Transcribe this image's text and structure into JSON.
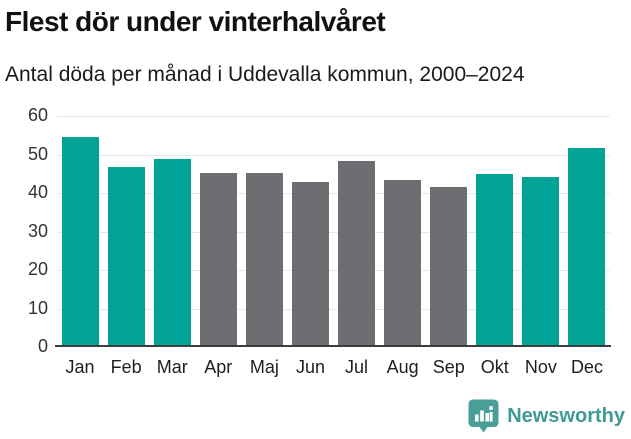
{
  "header": {
    "title": "Flest dör under vinterhalvåret",
    "subtitle": "Antal döda per månad i Uddevalla kommun, 2000–2024"
  },
  "chart_data": {
    "type": "bar",
    "title": "Flest dör under vinterhalvåret",
    "subtitle": "Antal döda per månad i Uddevalla kommun, 2000–2024",
    "categories": [
      "Jan",
      "Feb",
      "Mar",
      "Apr",
      "Maj",
      "Jun",
      "Jul",
      "Aug",
      "Sep",
      "Okt",
      "Nov",
      "Dec"
    ],
    "values": [
      54.5,
      46.7,
      48.8,
      45.2,
      45.2,
      42.9,
      48.3,
      43.4,
      41.6,
      45.0,
      44.2,
      51.6
    ],
    "bar_colors": [
      "teal",
      "teal",
      "teal",
      "gray",
      "gray",
      "gray",
      "gray",
      "gray",
      "gray",
      "teal",
      "teal",
      "teal"
    ],
    "xlabel": "",
    "ylabel": "",
    "ylim": [
      0,
      60
    ],
    "yticks": [
      0,
      10,
      20,
      30,
      40,
      50,
      60
    ],
    "grid": true,
    "legend": false
  },
  "colors": {
    "teal": "#00A396",
    "gray": "#6E6D72",
    "gridline": "#e8e8e8",
    "axis_line": "#3d3d3d",
    "brand_bubble": "#4a9e98",
    "brand_text": "#3f9a94",
    "title_text": "#111111",
    "subtitle_text": "#1a1a1a"
  },
  "footer": {
    "brand_name": "Newsworthy",
    "logo_icon": "bar-chart-exclamation-in-speech-bubble"
  }
}
